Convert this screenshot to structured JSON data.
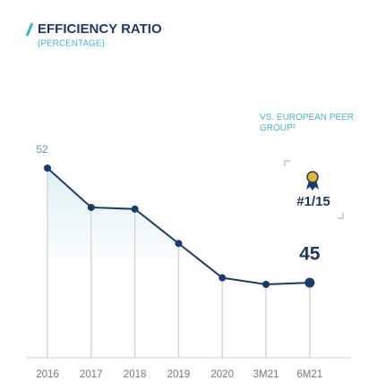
{
  "chart_data": {
    "type": "line",
    "title": "EFFICIENCY RATIO",
    "subtitle": "(PERCENTAGE)",
    "categories": [
      "2016",
      "2017",
      "2018",
      "2019",
      "2020",
      "3M21",
      "6M21"
    ],
    "values": [
      52,
      49.6,
      49.5,
      47.4,
      45.3,
      44.9,
      45
    ],
    "color": "#1b3a6b",
    "annotation": {
      "text": "VS. EUROPEAN PEER GROUP²",
      "rank": "#1/15"
    }
  }
}
